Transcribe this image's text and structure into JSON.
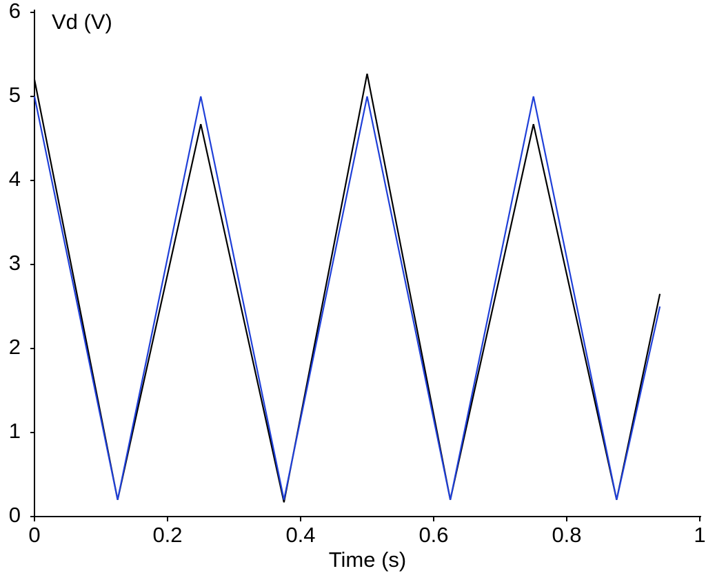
{
  "chart_data": {
    "type": "line",
    "x_label": "Time (s)",
    "y_label": "Vd (V)",
    "x": [
      0,
      0.125,
      0.25,
      0.375,
      0.5,
      0.625,
      0.75,
      0.875,
      0.94
    ],
    "series": [
      {
        "color": "#000000",
        "values": [
          5.2,
          0.2,
          4.67,
          0.17,
          5.27,
          0.2,
          4.67,
          0.2,
          2.65
        ]
      },
      {
        "color": "#1f3fd8",
        "values": [
          5.0,
          0.2,
          5.0,
          0.2,
          5.0,
          0.2,
          5.0,
          0.2,
          2.5
        ]
      }
    ],
    "xlim": [
      0,
      1
    ],
    "xticks": [
      0,
      0.2,
      0.4,
      0.6,
      0.8,
      1
    ],
    "ylim": [
      0,
      6
    ],
    "yticks": [
      0,
      1,
      2,
      3,
      4,
      5,
      6
    ]
  }
}
